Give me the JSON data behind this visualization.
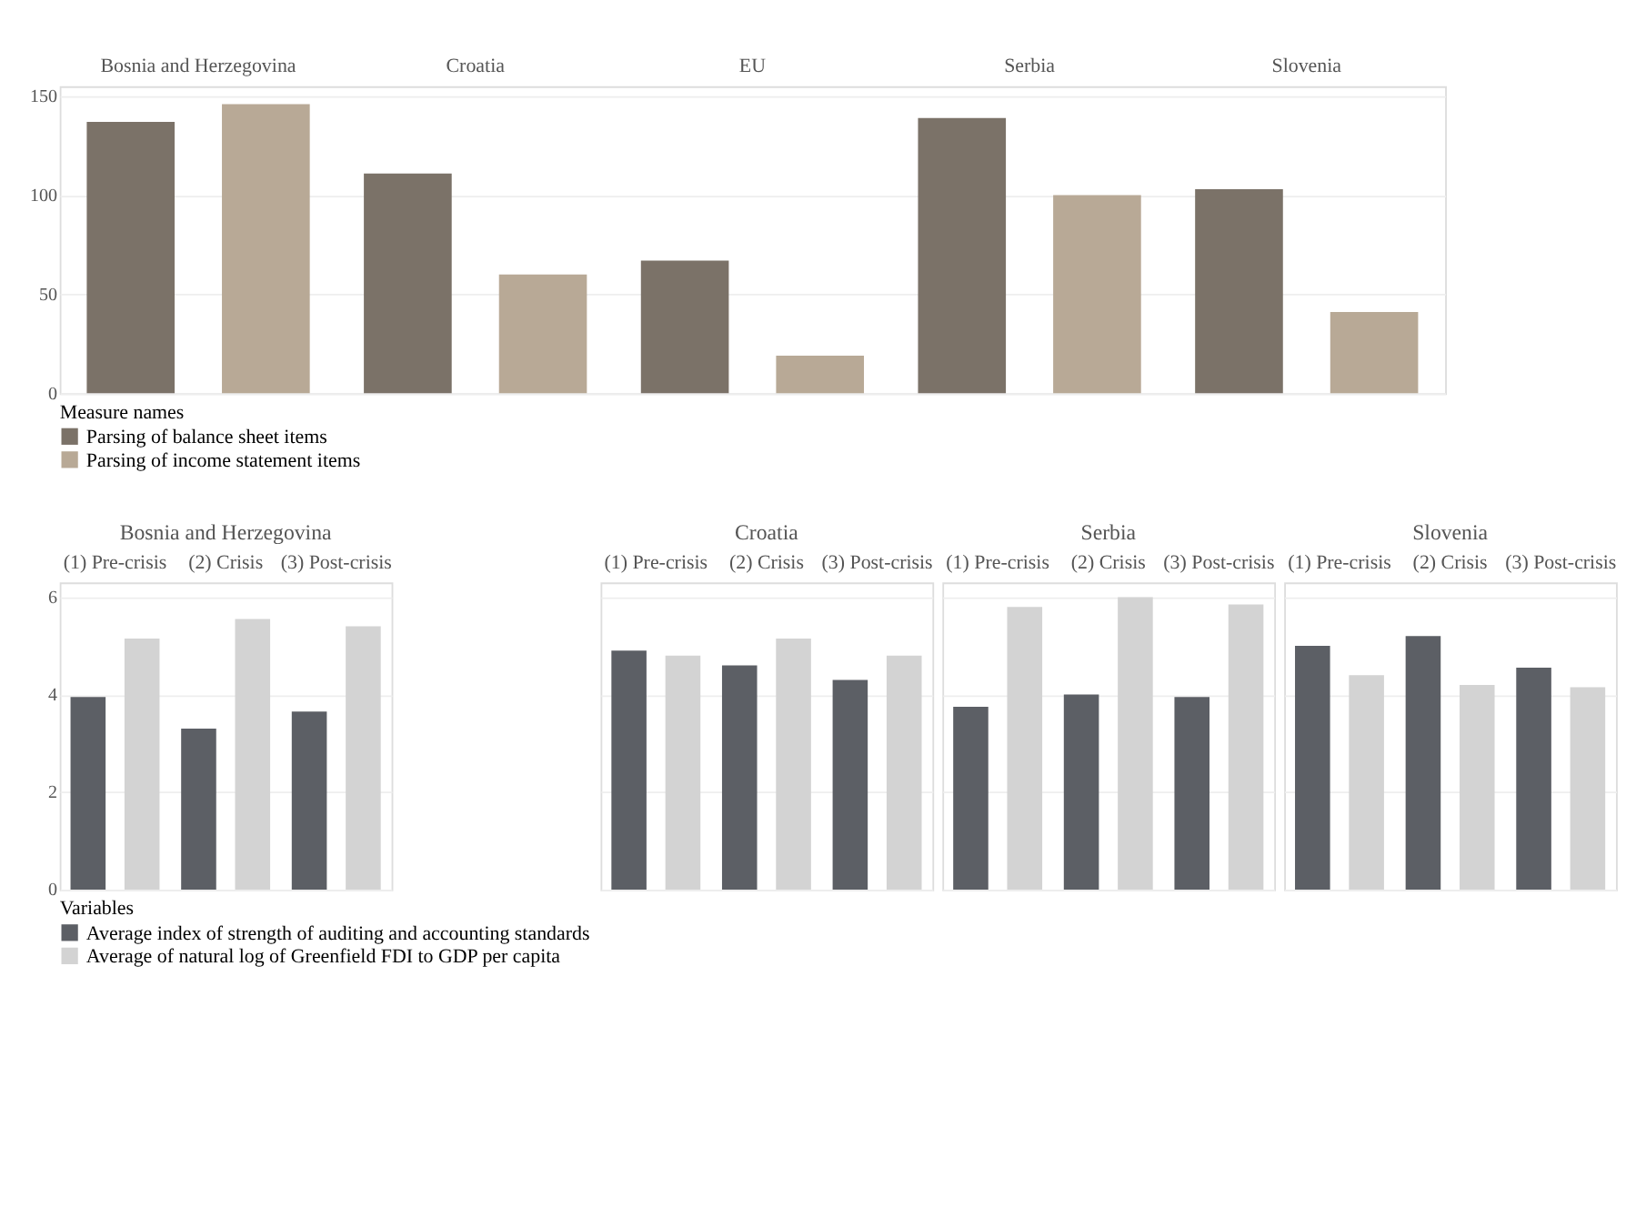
{
  "chart_data": [
    {
      "type": "bar",
      "categories": [
        "Bosnia and Herzegovina",
        "Croatia",
        "EU",
        "Serbia",
        "Slovenia"
      ],
      "legend_title": "Measure names",
      "legend": "bottom",
      "grid": "y",
      "ylim": [
        0,
        155
      ],
      "yticks": [
        0,
        50,
        100,
        150
      ],
      "series": [
        {
          "name": "Parsing of balance sheet items",
          "color": "#7b7268",
          "values": [
            137,
            111,
            67,
            139,
            103
          ]
        },
        {
          "name": "Parsing of income statement items",
          "color": "#b8a996",
          "values": [
            146,
            60,
            19,
            100,
            41
          ]
        }
      ]
    },
    {
      "type": "bar",
      "title": "Bosnia and Herzegovina",
      "categories": [
        "(1) Pre-crisis",
        "(2) Crisis",
        "(3) Post-crisis"
      ],
      "legend_title": "Variables",
      "legend": "bottom",
      "grid": "y",
      "ylim": [
        0,
        6.3
      ],
      "yticks": [
        0,
        2,
        4,
        6
      ],
      "series": [
        {
          "name": "Average index of strength of auditing and accounting standards",
          "color": "#5c5f65",
          "values": [
            3.95,
            3.3,
            3.65
          ]
        },
        {
          "name": "Average of natural log of Greenfield FDI to GDP per capita",
          "color": "#d3d3d3",
          "values": [
            5.15,
            5.55,
            5.4
          ]
        }
      ]
    },
    {
      "type": "bar",
      "title": "Croatia",
      "categories": [
        "(1) Pre-crisis",
        "(2) Crisis",
        "(3) Post-crisis"
      ],
      "grid": "y",
      "ylim": [
        0,
        6.3
      ],
      "yticks": [
        0,
        2,
        4,
        6
      ],
      "tick_labels": "x",
      "series": [
        {
          "color": "#5c5f65",
          "values": [
            4.9,
            4.6,
            4.3
          ]
        },
        {
          "color": "#d3d3d3",
          "values": [
            4.8,
            5.15,
            4.8
          ]
        }
      ]
    },
    {
      "type": "bar",
      "title": "Serbia",
      "categories": [
        "(1) Pre-crisis",
        "(2) Crisis",
        "(3) Post-crisis"
      ],
      "grid": "y",
      "ylim": [
        0,
        6.3
      ],
      "yticks": [
        0,
        2,
        4,
        6
      ],
      "tick_labels": "x",
      "series": [
        {
          "color": "#5c5f65",
          "values": [
            3.75,
            4.0,
            3.95
          ]
        },
        {
          "color": "#d3d3d3",
          "values": [
            5.8,
            6.0,
            5.85
          ]
        }
      ]
    },
    {
      "type": "bar",
      "title": "Slovenia",
      "categories": [
        "(1) Pre-crisis",
        "(2) Crisis",
        "(3) Post-crisis"
      ],
      "grid": "y",
      "ylim": [
        0,
        6.3
      ],
      "yticks": [
        0,
        2,
        4,
        6
      ],
      "tick_labels": "x",
      "series": [
        {
          "color": "#5c5f65",
          "values": [
            5.0,
            5.2,
            4.55
          ]
        },
        {
          "color": "#d3d3d3",
          "values": [
            4.4,
            4.2,
            4.15
          ]
        }
      ]
    }
  ]
}
